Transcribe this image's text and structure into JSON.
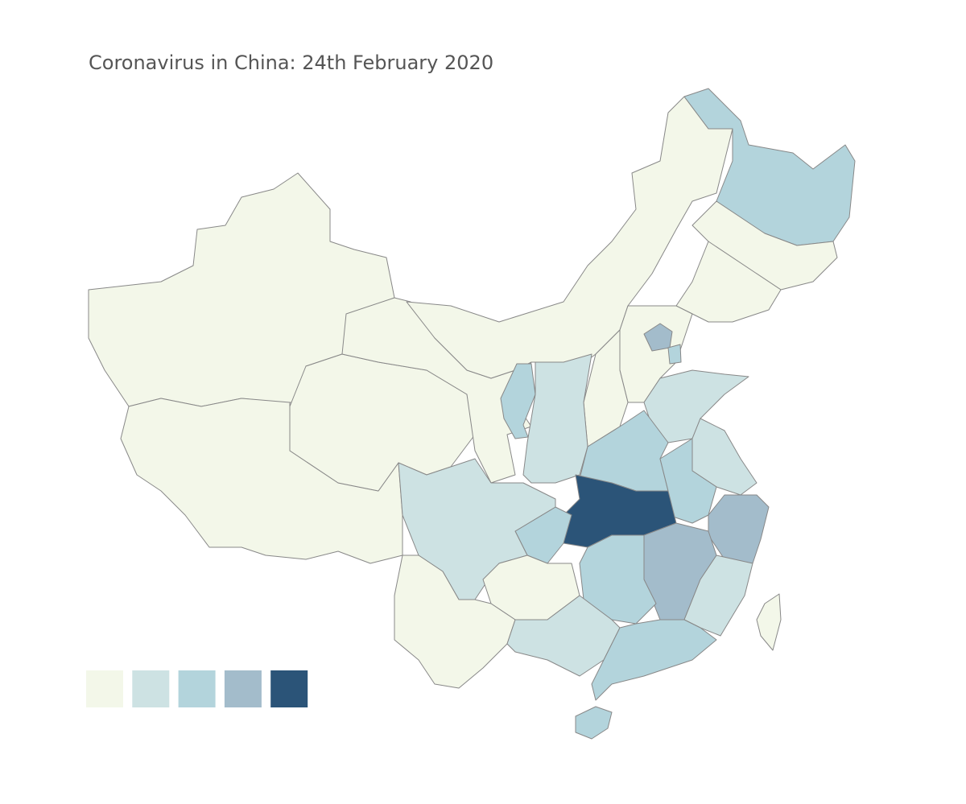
{
  "title": "Coronavirus in China: 24th February 2020",
  "legend": {
    "colors": [
      "#f3f7e9",
      "#cde2e3",
      "#b3d4dc",
      "#a3bccb",
      "#2b5478"
    ]
  }
}
